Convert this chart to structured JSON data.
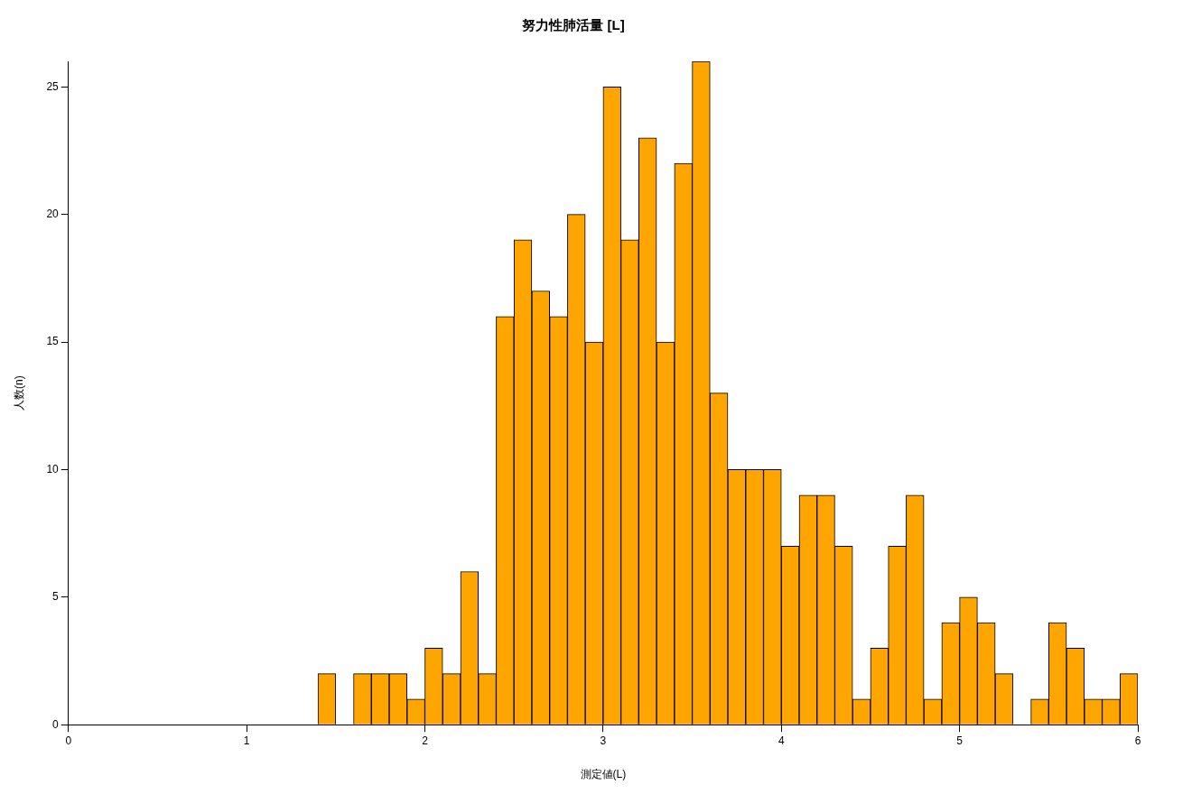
{
  "chart_data": {
    "type": "histogram",
    "title": "努力性肺活量 [L]",
    "xlabel": "測定値(L)",
    "ylabel": "人数(n)",
    "bins": [
      1.4,
      1.5,
      1.6,
      1.7,
      1.8,
      1.9,
      2.0,
      2.1,
      2.2,
      2.3,
      2.4,
      2.5,
      2.6,
      2.7,
      2.8,
      2.9,
      3.0,
      3.1,
      3.2,
      3.3,
      3.4,
      3.5,
      3.6,
      3.7,
      3.8,
      3.9,
      4.0,
      4.1,
      4.2,
      4.3,
      4.4,
      4.5,
      4.6,
      4.7,
      4.8,
      4.9,
      5.0,
      5.1,
      5.2,
      5.3,
      5.4,
      5.5,
      5.6,
      5.7,
      5.8,
      5.9,
      6.0
    ],
    "values": [
      2,
      0,
      2,
      2,
      2,
      1,
      3,
      2,
      6,
      2,
      16,
      19,
      17,
      16,
      20,
      15,
      25,
      19,
      23,
      15,
      22,
      26,
      13,
      10,
      10,
      10,
      7,
      9,
      9,
      7,
      1,
      3,
      7,
      9,
      1,
      4,
      5,
      4,
      2,
      0,
      1,
      4,
      3,
      1,
      1,
      2
    ],
    "color": "#ffa500",
    "xlim": [
      0,
      6
    ],
    "xticks": [
      0,
      1,
      2,
      3,
      4,
      5,
      6
    ],
    "ylim": [
      0,
      26
    ],
    "yticks": [
      0,
      5,
      10,
      15,
      20,
      25
    ],
    "grid": false,
    "legend": false
  }
}
